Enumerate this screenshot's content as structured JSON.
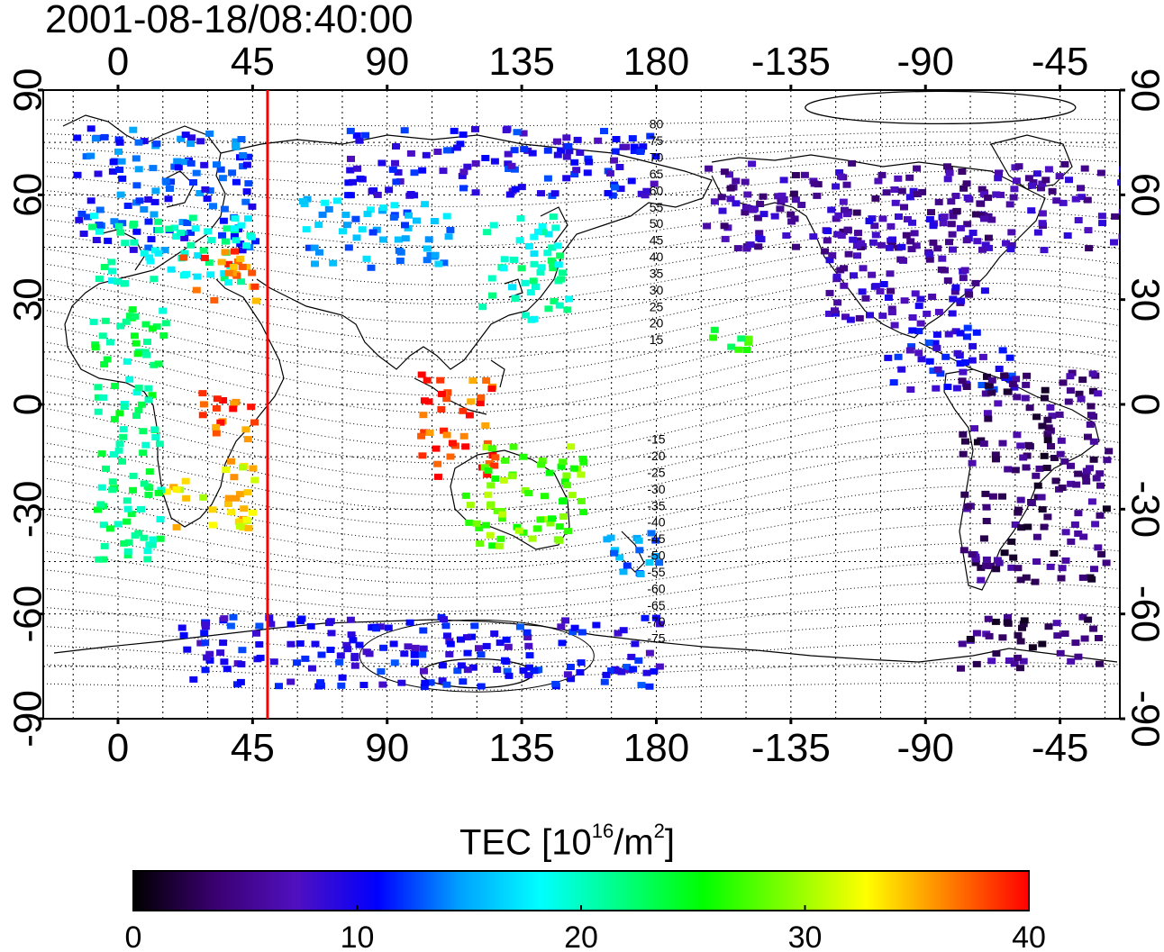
{
  "title": "2001-08-18/08:40:00",
  "map": {
    "top_lon_ticks": [
      "0",
      "45",
      "90",
      "135",
      "180",
      "-135",
      "-90",
      "-45"
    ],
    "bottom_lon_ticks": [
      "0",
      "45",
      "90",
      "135",
      "180",
      "-135",
      "-90",
      "-45"
    ],
    "lat_ticks": [
      "90",
      "60",
      "30",
      "0",
      "-30",
      "-60",
      "-90"
    ],
    "contour_labels": [
      "80",
      "75",
      "70",
      "65",
      "60",
      "55",
      "50",
      "45",
      "40",
      "35",
      "30",
      "25",
      "20",
      "15",
      "-15",
      "-20",
      "-25",
      "-30",
      "-35",
      "-40",
      "-45",
      "-50",
      "-55",
      "-60",
      "-65",
      "-70",
      "-75"
    ],
    "marker_longitude": 50,
    "marker_color": "#ff0000"
  },
  "colorbar": {
    "title_prefix": "TEC  [10",
    "title_exp1": "16",
    "title_mid": "/m",
    "title_exp2": "2",
    "title_suffix": "]",
    "ticks": [
      "0",
      "10",
      "20",
      "30",
      "40"
    ],
    "range": [
      0,
      40
    ],
    "colors": [
      "#000000",
      "#3a0070",
      "#5010c0",
      "#0000ff",
      "#00a0ff",
      "#00ffff",
      "#00ff80",
      "#00ff00",
      "#80ff00",
      "#ffff00",
      "#ff8000",
      "#ff0000"
    ]
  },
  "chart_data": {
    "type": "heatmap",
    "title": "2001-08-18/08:40:00",
    "xlabel": "",
    "ylabel": "",
    "xlim": [
      -25,
      335
    ],
    "ylim": [
      -90,
      90
    ],
    "colorbar_label": "TEC [10^16/m^2]",
    "color_range": [
      0,
      40
    ],
    "regions": [
      {
        "lon": [
          -15,
          45
        ],
        "lat": [
          45,
          80
        ],
        "tec": 12
      },
      {
        "lon": [
          -10,
          45
        ],
        "lat": [
          35,
          55
        ],
        "tec": 20
      },
      {
        "lon": [
          20,
          45
        ],
        "lat": [
          30,
          45
        ],
        "tec": 37
      },
      {
        "lon": [
          60,
          110
        ],
        "lat": [
          40,
          60
        ],
        "tec": 15
      },
      {
        "lon": [
          75,
          180
        ],
        "lat": [
          60,
          80
        ],
        "tec": 10
      },
      {
        "lon": [
          120,
          150
        ],
        "lat": [
          25,
          55
        ],
        "tec": 20
      },
      {
        "lon": [
          100,
          125
        ],
        "lat": [
          -20,
          10
        ],
        "tec": 38
      },
      {
        "lon": [
          115,
          155
        ],
        "lat": [
          -40,
          -10
        ],
        "tec": 28
      },
      {
        "lon": [
          160,
          180
        ],
        "lat": [
          -50,
          -35
        ],
        "tec": 14
      },
      {
        "lon": [
          15,
          45
        ],
        "lat": [
          -35,
          -15
        ],
        "tec": 33
      },
      {
        "lon": [
          25,
          45
        ],
        "lat": [
          -10,
          5
        ],
        "tec": 38
      },
      {
        "lon": [
          -10,
          15
        ],
        "lat": [
          -45,
          30
        ],
        "tec": 22
      },
      {
        "lon": [
          195,
          210
        ],
        "lat": [
          15,
          25
        ],
        "tec": 25
      },
      {
        "lon": [
          195,
          360
        ],
        "lat": [
          45,
          70
        ],
        "tec": 6
      },
      {
        "lon": [
          235,
          290
        ],
        "lat": [
          25,
          55
        ],
        "tec": 7
      },
      {
        "lon": [
          255,
          300
        ],
        "lat": [
          5,
          25
        ],
        "tec": 10
      },
      {
        "lon": [
          280,
          330
        ],
        "lat": [
          -50,
          10
        ],
        "tec": 4
      },
      {
        "lon": [
          280,
          330
        ],
        "lat": [
          -75,
          -60
        ],
        "tec": 4
      },
      {
        "lon": [
          20,
          180
        ],
        "lat": [
          -80,
          -60
        ],
        "tec": 10
      }
    ]
  }
}
